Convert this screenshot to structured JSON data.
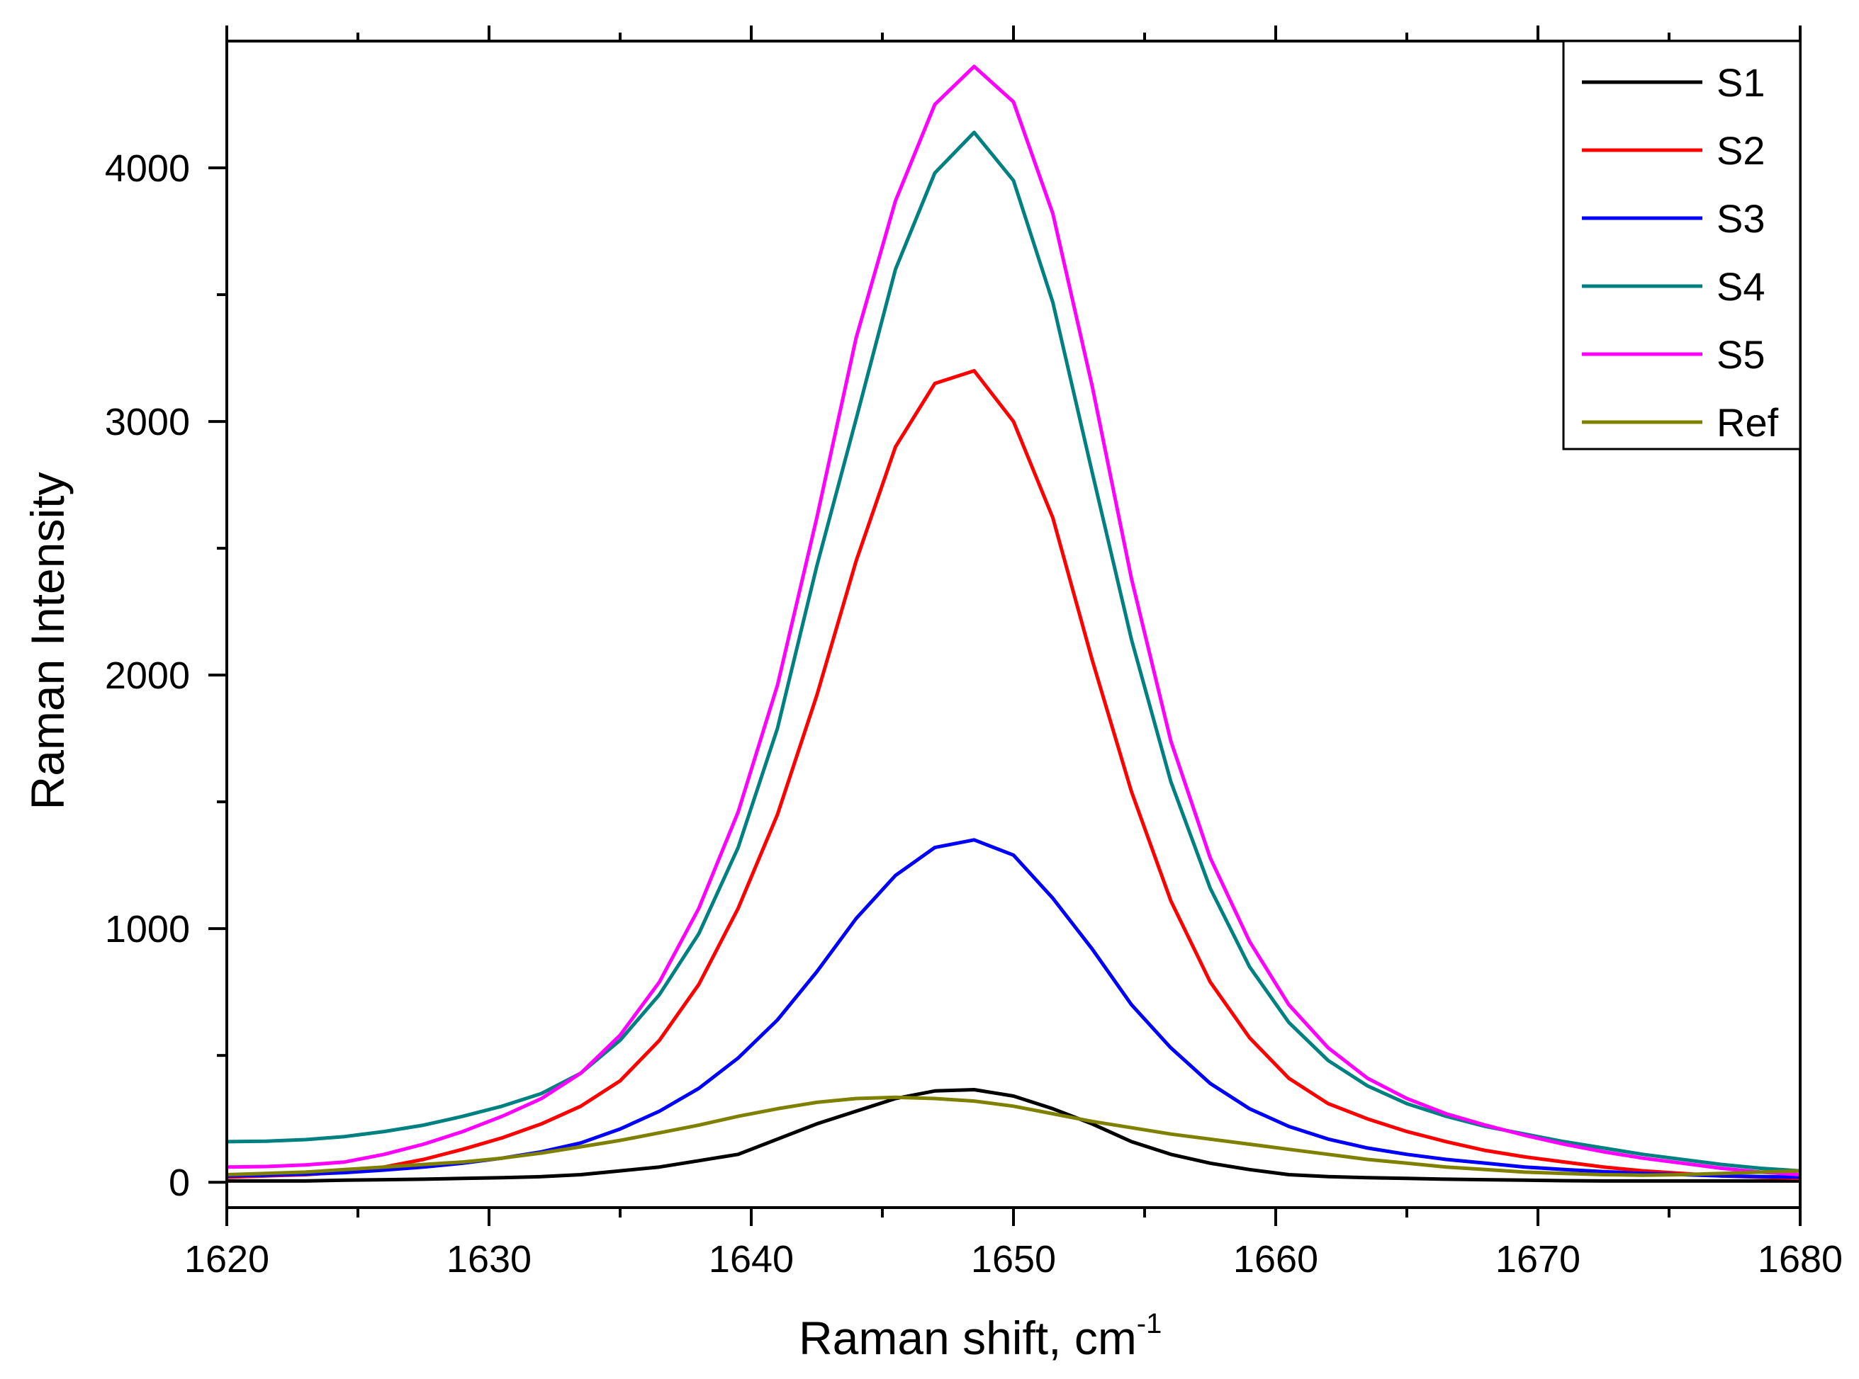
{
  "chart_data": {
    "type": "line",
    "title": "",
    "xlabel": "Raman shift, cm",
    "xlabel_superscript": "-1",
    "ylabel": "Raman Intensity",
    "xlim": [
      1620,
      1680
    ],
    "ylim": [
      -100,
      4500
    ],
    "x_ticks": [
      1620,
      1630,
      1640,
      1650,
      1660,
      1670,
      1680
    ],
    "y_ticks": [
      0,
      1000,
      2000,
      3000,
      4000
    ],
    "x_tick_labels": [
      "1620",
      "1630",
      "1640",
      "1650",
      "1660",
      "1670",
      "1680"
    ],
    "y_tick_labels": [
      "0",
      "1000",
      "2000",
      "3000",
      "4000"
    ],
    "legend_position": "top-right",
    "grid": false,
    "x": [
      1620,
      1621.5,
      1623,
      1624.5,
      1626,
      1627.5,
      1629,
      1630.5,
      1632,
      1633.5,
      1635,
      1636.5,
      1638,
      1639.5,
      1641,
      1642.5,
      1644,
      1645.5,
      1647,
      1648.5,
      1650,
      1651.5,
      1653,
      1654.5,
      1656,
      1657.5,
      1659,
      1660.5,
      1662,
      1663.5,
      1665,
      1666.5,
      1668,
      1669.5,
      1671,
      1672.5,
      1674,
      1675.5,
      1677,
      1678.5,
      1680
    ],
    "series": [
      {
        "name": "S1",
        "color": "#000000",
        "values": [
          5,
          5,
          5,
          8,
          10,
          12,
          15,
          18,
          22,
          30,
          45,
          60,
          85,
          110,
          170,
          230,
          280,
          330,
          360,
          365,
          340,
          290,
          230,
          160,
          110,
          75,
          50,
          30,
          22,
          18,
          15,
          12,
          10,
          8,
          6,
          5,
          5,
          5,
          5,
          5,
          5
        ]
      },
      {
        "name": "S2",
        "color": "#ff0000",
        "values": [
          20,
          25,
          30,
          40,
          60,
          90,
          130,
          175,
          230,
          300,
          400,
          560,
          780,
          1080,
          1450,
          1920,
          2450,
          2900,
          3150,
          3200,
          3000,
          2620,
          2060,
          1540,
          1110,
          790,
          570,
          410,
          310,
          250,
          200,
          160,
          125,
          100,
          80,
          60,
          45,
          35,
          25,
          20,
          15
        ]
      },
      {
        "name": "S3",
        "color": "#0000ff",
        "values": [
          25,
          28,
          32,
          38,
          48,
          60,
          75,
          95,
          120,
          155,
          210,
          280,
          370,
          490,
          640,
          830,
          1040,
          1210,
          1320,
          1350,
          1290,
          1120,
          920,
          700,
          530,
          390,
          290,
          220,
          170,
          135,
          110,
          90,
          75,
          60,
          50,
          42,
          35,
          30,
          25,
          22,
          20
        ]
      },
      {
        "name": "S4",
        "color": "#008080",
        "values": [
          160,
          162,
          168,
          180,
          200,
          225,
          260,
          300,
          350,
          430,
          560,
          740,
          980,
          1320,
          1790,
          2430,
          3010,
          3600,
          3980,
          4140,
          3950,
          3470,
          2800,
          2140,
          1580,
          1160,
          850,
          630,
          480,
          380,
          310,
          260,
          220,
          190,
          160,
          135,
          110,
          90,
          70,
          55,
          45
        ]
      },
      {
        "name": "S5",
        "color": "#ff00ff",
        "values": [
          60,
          62,
          68,
          80,
          110,
          150,
          200,
          260,
          330,
          430,
          580,
          790,
          1080,
          1460,
          1960,
          2620,
          3330,
          3870,
          4250,
          4400,
          4260,
          3820,
          3140,
          2380,
          1740,
          1280,
          950,
          700,
          530,
          410,
          330,
          270,
          225,
          185,
          150,
          120,
          95,
          75,
          55,
          40,
          30
        ]
      },
      {
        "name": "Ref",
        "color": "#808000",
        "values": [
          30,
          35,
          40,
          50,
          60,
          70,
          80,
          95,
          115,
          140,
          165,
          195,
          225,
          260,
          290,
          315,
          330,
          335,
          330,
          320,
          300,
          270,
          240,
          215,
          190,
          170,
          150,
          130,
          110,
          90,
          75,
          60,
          50,
          40,
          35,
          30,
          28,
          30,
          35,
          40,
          45
        ]
      }
    ]
  }
}
